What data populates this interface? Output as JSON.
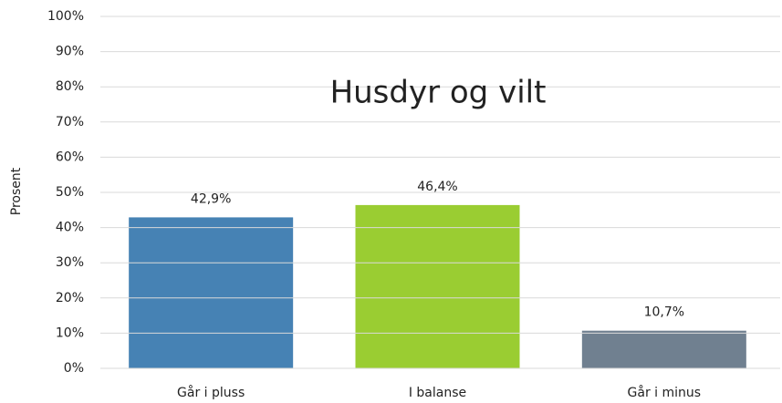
{
  "chart_data": {
    "type": "bar",
    "title": "Husdyr og vilt",
    "ylabel": "Prosent",
    "categories": [
      "Går i pluss",
      "I balanse",
      "Går i minus"
    ],
    "values": [
      42.9,
      46.4,
      10.7
    ],
    "value_labels": [
      "42,9%",
      "46,4%",
      "10,7%"
    ],
    "colors": [
      "#4682b4",
      "#9acd32",
      "#708090"
    ],
    "ylim": [
      0,
      100
    ],
    "yticks": [
      {
        "value": 0,
        "label": "0%"
      },
      {
        "value": 10,
        "label": "10%"
      },
      {
        "value": 20,
        "label": "20%"
      },
      {
        "value": 30,
        "label": "30%"
      },
      {
        "value": 40,
        "label": "40%"
      },
      {
        "value": 50,
        "label": "50%"
      },
      {
        "value": 60,
        "label": "60%"
      },
      {
        "value": 70,
        "label": "70%"
      },
      {
        "value": 80,
        "label": "80%"
      },
      {
        "value": 90,
        "label": "90%"
      },
      {
        "value": 100,
        "label": "100%"
      }
    ],
    "grid": true
  }
}
